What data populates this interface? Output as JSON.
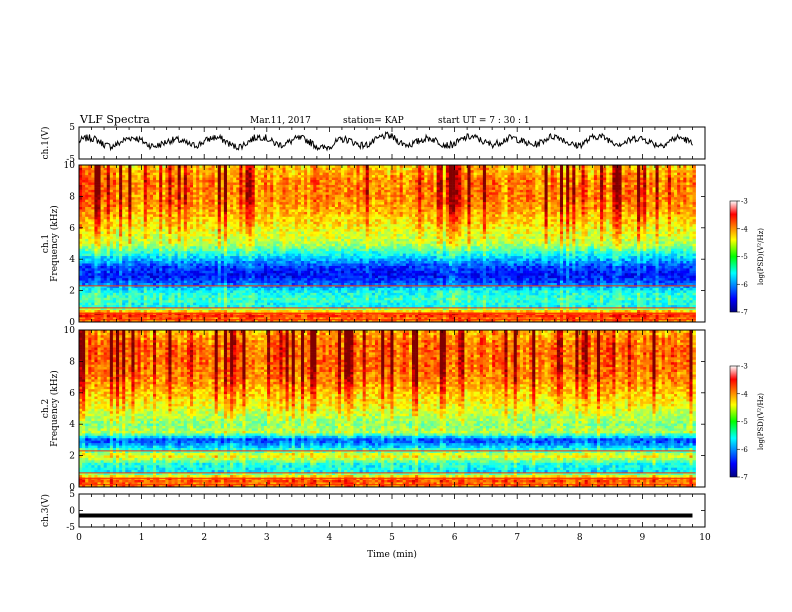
{
  "header": {
    "title": "VLF Spectra",
    "date": "Mar.11, 2017",
    "station": "station= KAP",
    "start_ut": "start UT =   7 : 30 : 1"
  },
  "chart_data": [
    {
      "type": "line",
      "panel": "ch1-waveform",
      "ylabel": "ch.1(V)",
      "ylim": [
        -5,
        5
      ],
      "yticks": [
        "5",
        "-5"
      ],
      "xlim": [
        0,
        10
      ],
      "series_color": "#000000",
      "description_values_x_min": [
        0.0,
        0.5,
        1.0,
        1.5,
        2.0,
        2.5,
        3.0,
        3.5,
        4.0,
        4.5,
        5.0,
        5.5,
        6.0,
        6.5,
        7.0,
        7.5,
        8.0,
        8.5,
        9.0,
        9.5,
        9.8
      ],
      "description_values_y": [
        0.5,
        0.2,
        0.6,
        -0.3,
        0.8,
        0.0,
        1.0,
        0.3,
        -0.5,
        0.4,
        1.2,
        0.2,
        0.6,
        0.9,
        0.3,
        1.0,
        0.4,
        1.3,
        0.2,
        0.9,
        -0.4
      ]
    },
    {
      "type": "heatmap",
      "panel": "ch1-spectrogram",
      "ylabel_line1": "ch.1",
      "ylabel_line2": "Frequency (kHz)",
      "ylim": [
        0,
        10
      ],
      "yticks": [
        "0",
        "2",
        "4",
        "6",
        "8",
        "10"
      ],
      "xlim": [
        0,
        10
      ],
      "colorbar": {
        "label": "log(PSD)(V²/Hz)",
        "range": [
          -7,
          -3
        ],
        "ticks": [
          "-3",
          "-4",
          "-5",
          "-6",
          "-7"
        ],
        "colormap": "jet"
      },
      "frequency_profile_khz": [
        0.2,
        0.5,
        1.0,
        1.5,
        2.0,
        2.5,
        3.0,
        3.5,
        4.0,
        5.0,
        6.0,
        7.0,
        8.0,
        9.0,
        10.0
      ],
      "frequency_profile_logpsd": [
        -4.0,
        -3.6,
        -5.5,
        -5.3,
        -5.5,
        -6.2,
        -6.5,
        -6.3,
        -5.8,
        -4.8,
        -4.5,
        -4.2,
        -4.0,
        -4.0,
        -4.3
      ]
    },
    {
      "type": "heatmap",
      "panel": "ch2-spectrogram",
      "ylabel_line1": "ch.2",
      "ylabel_line2": "Frequency (kHz)",
      "ylim": [
        0,
        10
      ],
      "yticks": [
        "0",
        "2",
        "4",
        "6",
        "8",
        "10"
      ],
      "xlim": [
        0,
        10
      ],
      "colorbar": {
        "label": "log(PSD)(V²/Hz)",
        "range": [
          -7,
          -3
        ],
        "ticks": [
          "-3",
          "-4",
          "-5",
          "-6",
          "-7"
        ],
        "colormap": "jet"
      },
      "frequency_profile_khz": [
        0.2,
        0.5,
        1.0,
        1.5,
        2.0,
        2.5,
        3.0,
        3.5,
        4.0,
        5.0,
        6.0,
        7.0,
        8.0,
        9.0,
        10.0
      ],
      "frequency_profile_logpsd": [
        -4.0,
        -3.8,
        -5.6,
        -5.4,
        -4.5,
        -5.6,
        -6.3,
        -4.8,
        -5.0,
        -4.6,
        -4.3,
        -4.0,
        -3.9,
        -3.9,
        -4.2
      ]
    },
    {
      "type": "line",
      "panel": "ch3-waveform",
      "ylabel": "ch.3(V)",
      "ylim": [
        -5,
        5
      ],
      "yticks": [
        "5",
        "0",
        "-5"
      ],
      "xlim": [
        0,
        10
      ],
      "xlabel": "Time (min)",
      "xticks": [
        "0",
        "1",
        "2",
        "3",
        "4",
        "5",
        "6",
        "7",
        "8",
        "9",
        "10"
      ],
      "x": [
        0,
        9.8
      ],
      "y": [
        -1.5,
        -1.5
      ]
    }
  ]
}
